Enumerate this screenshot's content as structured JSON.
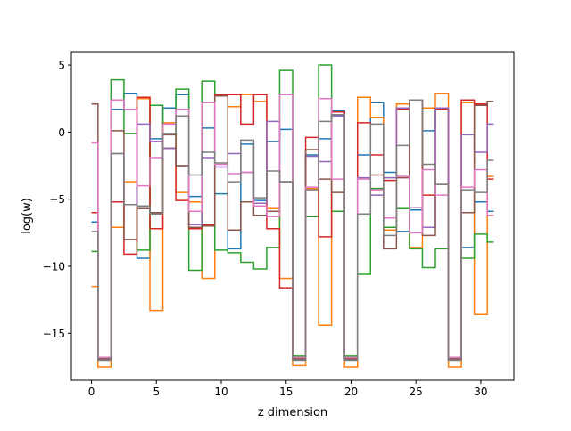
{
  "chart_data": {
    "type": "line",
    "step": "mid",
    "xlabel": "z dimension",
    "ylabel": "log(w)",
    "xlim": [
      -1.55,
      32.55
    ],
    "ylim": [
      -18.5,
      6.0
    ],
    "xticks": [
      0,
      5,
      10,
      15,
      20,
      25,
      30
    ],
    "yticks": [
      -15,
      -10,
      -5,
      0,
      5
    ],
    "x": [
      0,
      1,
      2,
      3,
      4,
      5,
      6,
      7,
      8,
      9,
      10,
      11,
      12,
      13,
      14,
      15,
      16,
      17,
      18,
      19,
      20,
      21,
      22,
      23,
      24,
      25,
      26,
      27,
      28,
      29,
      30,
      31
    ],
    "series": [
      {
        "color": "#1f77b4",
        "values": [
          -6.7,
          -17,
          1.7,
          2.9,
          -9.4,
          -0.5,
          1.8,
          2.8,
          -4.8,
          0.3,
          -4.6,
          -8.7,
          -0.9,
          -5.1,
          -0.7,
          0.2,
          -17,
          -1.7,
          -0.5,
          1.6,
          -17,
          -1.7,
          2.2,
          -3.0,
          -7.4,
          -5.8,
          0.1,
          1.8,
          -17,
          -8.6,
          -5.2,
          -5.9
        ]
      },
      {
        "color": "#ff7f0e",
        "values": [
          -11.5,
          -17.5,
          -7.1,
          -3.7,
          2.5,
          -13.3,
          0.7,
          -4.5,
          -5.2,
          -10.9,
          2.8,
          1.9,
          2.8,
          2.3,
          -5.7,
          -10.9,
          -17.4,
          -4.2,
          -14.4,
          1.3,
          -17.5,
          2.6,
          1.1,
          -7.3,
          2.1,
          -8.6,
          1.8,
          2.9,
          -17.5,
          2.2,
          -13.6,
          -3.3
        ]
      },
      {
        "color": "#2ca02c",
        "values": [
          -8.9,
          -16.8,
          3.9,
          -0.1,
          -8.8,
          2.0,
          -1.2,
          3.2,
          -10.3,
          3.8,
          -8.8,
          -9.0,
          -9.7,
          -10.2,
          -8.6,
          4.6,
          -16.7,
          -6.3,
          5.0,
          -5.9,
          -16.7,
          -10.6,
          -4.2,
          -7.1,
          -5.7,
          -8.7,
          -10.1,
          -8.7,
          -16.8,
          -9.4,
          -7.6,
          -8.2
        ]
      },
      {
        "color": "#d62728",
        "values": [
          -6.0,
          -16.9,
          -5.2,
          -9.1,
          2.6,
          -7.2,
          -1.2,
          -5.1,
          -7.2,
          -6.9,
          2.8,
          2.8,
          0.6,
          2.8,
          -7.2,
          -11.6,
          -16.9,
          -0.4,
          -7.8,
          1.5,
          -16.9,
          0.7,
          -1.7,
          -3.6,
          1.7,
          2.4,
          -4.7,
          1.7,
          -16.9,
          2.4,
          2.1,
          -3.5
        ]
      },
      {
        "color": "#9467bd",
        "values": [
          -0.8,
          -16.9,
          -1.6,
          -5.4,
          0.6,
          -0.7,
          -1.2,
          -2.5,
          -6.9,
          -1.9,
          -2.6,
          -1.6,
          -3.0,
          -5.3,
          0.8,
          -3.7,
          -16.9,
          -1.8,
          -2.2,
          1.2,
          -16.9,
          -3.4,
          -4.7,
          -3.4,
          1.8,
          -5.6,
          -7.1,
          1.8,
          -16.9,
          -0.2,
          -1.5,
          0.6
        ]
      },
      {
        "color": "#8c564b",
        "values": [
          2.1,
          -16.9,
          0.1,
          -8.0,
          -5.7,
          -6.0,
          -0.2,
          -2.5,
          -7.1,
          -7.0,
          2.7,
          -7.3,
          -5.2,
          -6.2,
          -5.9,
          -3.7,
          -16.9,
          -1.3,
          -3.5,
          -4.5,
          -16.9,
          -6.1,
          -3.2,
          -8.7,
          -3.4,
          2.4,
          -7.7,
          -3.9,
          -16.9,
          -6.0,
          2.0,
          2.3
        ]
      },
      {
        "color": "#e377c2",
        "values": [
          -0.8,
          -16.8,
          2.4,
          1.7,
          -4.0,
          -1.9,
          0.6,
          1.7,
          -5.9,
          2.2,
          -2.4,
          -3.1,
          -3.0,
          -5.5,
          -6.3,
          2.8,
          -16.8,
          -4.1,
          2.5,
          -3.5,
          -16.8,
          -3.5,
          -4.3,
          -6.4,
          -3.3,
          -7.5,
          -2.8,
          -4.7,
          -16.8,
          -4.1,
          -2.8,
          -6.2
        ]
      },
      {
        "color": "#7f7f7f",
        "values": [
          -7.4,
          -17.0,
          -1.6,
          -5.4,
          -5.5,
          -6.1,
          -0.1,
          1.2,
          -3.2,
          -1.5,
          -2.3,
          -3.7,
          -0.6,
          -4.9,
          -2.9,
          -3.7,
          -17.0,
          -4.3,
          0.8,
          1.3,
          -17.0,
          -6.1,
          0.6,
          -7.7,
          -1.0,
          2.4,
          -2.4,
          -3.9,
          -17.0,
          -4.3,
          -4.5,
          -2.1
        ]
      }
    ]
  }
}
